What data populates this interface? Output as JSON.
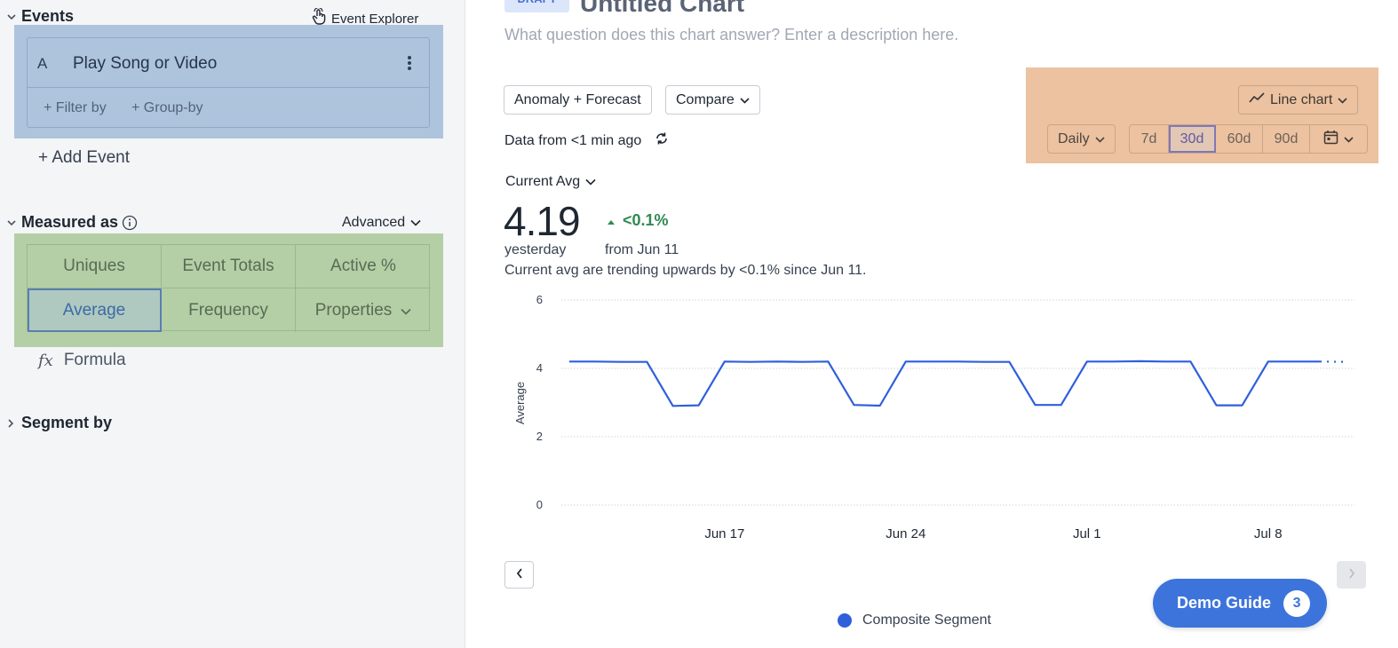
{
  "left_panel": {
    "events": {
      "title": "Events",
      "explorer_label": "Event Explorer",
      "event_letter": "A",
      "event_name": "Play Song or Video",
      "filter_by": "+ Filter by",
      "group_by": "+ Group-by",
      "add_event": "+ Add Event"
    },
    "measured_as": {
      "title": "Measured as",
      "advanced_label": "Advanced",
      "options": [
        "Uniques",
        "Event Totals",
        "Active %",
        "Average",
        "Frequency",
        "Properties"
      ],
      "selected": "Average",
      "formula_label": "Formula",
      "formula_icon": "fx"
    },
    "segment_by": {
      "title": "Segment by"
    }
  },
  "header": {
    "badge": "DRAFT",
    "title": "Untitled Chart",
    "description_placeholder": "What question does this chart answer? Enter a description here."
  },
  "toolbar": {
    "anomaly_label": "Anomaly + Forecast",
    "compare_label": "Compare",
    "data_from": "Data from <1 min ago",
    "chart_type_label": "Line chart",
    "interval_label": "Daily",
    "ranges": [
      "7d",
      "30d",
      "60d",
      "90d"
    ],
    "selected_range": "30d"
  },
  "metric": {
    "selector_label": "Current Avg",
    "value": "4.19",
    "delta": "<0.1%",
    "period_label": "yesterday",
    "compare_label": "from Jun 11",
    "trend_text": "Current avg are trending upwards by <0.1% since Jun 11."
  },
  "chart_data": {
    "type": "line",
    "ylabel": "Average",
    "xlabel": "",
    "ylim": [
      0,
      6
    ],
    "yticks": [
      "0",
      "2",
      "4",
      "6"
    ],
    "xtick_labels": [
      "Jun 17",
      "Jun 24",
      "Jul 1",
      "Jul 8"
    ],
    "x_start": "Jun 11",
    "series": [
      {
        "name": "Composite Segment",
        "color": "#2f5fdc",
        "values": [
          4.2,
          4.2,
          4.19,
          4.19,
          2.9,
          2.92,
          4.2,
          4.19,
          4.2,
          4.19,
          4.2,
          2.93,
          2.91,
          4.2,
          4.2,
          4.2,
          4.19,
          4.19,
          2.93,
          2.93,
          4.2,
          4.2,
          4.21,
          4.2,
          4.2,
          2.92,
          2.92,
          4.2,
          4.2,
          4.2
        ],
        "partial_last_point": 4.19
      }
    ]
  },
  "legend": {
    "label": "Composite Segment"
  },
  "demo_guide": {
    "label": "Demo Guide",
    "count": "3"
  },
  "colors": {
    "event_highlight": "#aec4dd",
    "measure_highlight": "#b4cfa6",
    "controls_highlight": "#ecc2a0",
    "line": "#2f5fdc",
    "positive_delta": "#2f8a52",
    "demo_button": "#3d74dc"
  }
}
